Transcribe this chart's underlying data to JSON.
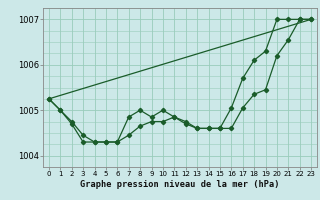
{
  "title": "Graphe pression niveau de la mer (hPa)",
  "background_color": "#cce8e8",
  "grid_color": "#99ccbb",
  "line_color": "#1a5c2a",
  "xlim": [
    -0.5,
    23.5
  ],
  "ylim": [
    1003.75,
    1007.25
  ],
  "yticks": [
    1004,
    1005,
    1006,
    1007
  ],
  "xtick_labels": [
    "0",
    "1",
    "2",
    "3",
    "4",
    "5",
    "6",
    "7",
    "8",
    "9",
    "10",
    "11",
    "12",
    "13",
    "14",
    "15",
    "16",
    "17",
    "18",
    "19",
    "20",
    "21",
    "22",
    "23"
  ],
  "series1_x": [
    0,
    1,
    2,
    3,
    4,
    5,
    6,
    7,
    8,
    9,
    10,
    11,
    12,
    13,
    14,
    15,
    16,
    17,
    18,
    19,
    20,
    21,
    22,
    23
  ],
  "series1_y": [
    1005.25,
    1005.0,
    1004.75,
    1004.45,
    1004.3,
    1004.3,
    1004.3,
    1004.45,
    1004.65,
    1004.75,
    1004.75,
    1004.85,
    1004.7,
    1004.6,
    1004.6,
    1004.6,
    1004.6,
    1005.05,
    1005.35,
    1005.45,
    1006.2,
    1006.55,
    1007.0,
    1007.0
  ],
  "series2_x": [
    0,
    1,
    2,
    3,
    4,
    5,
    6,
    7,
    8,
    9,
    10,
    11,
    12,
    13,
    14,
    15,
    16,
    17,
    18,
    19,
    20,
    21,
    22,
    23
  ],
  "series2_y": [
    1005.25,
    1005.0,
    1004.7,
    1004.3,
    1004.3,
    1004.3,
    1004.3,
    1004.85,
    1005.0,
    1004.85,
    1005.0,
    1004.85,
    1004.75,
    1004.6,
    1004.6,
    1004.6,
    1005.05,
    1005.7,
    1006.1,
    1006.3,
    1007.0,
    1007.0,
    1007.0,
    1007.0
  ],
  "series3_x": [
    0,
    23
  ],
  "series3_y": [
    1005.25,
    1007.0
  ]
}
